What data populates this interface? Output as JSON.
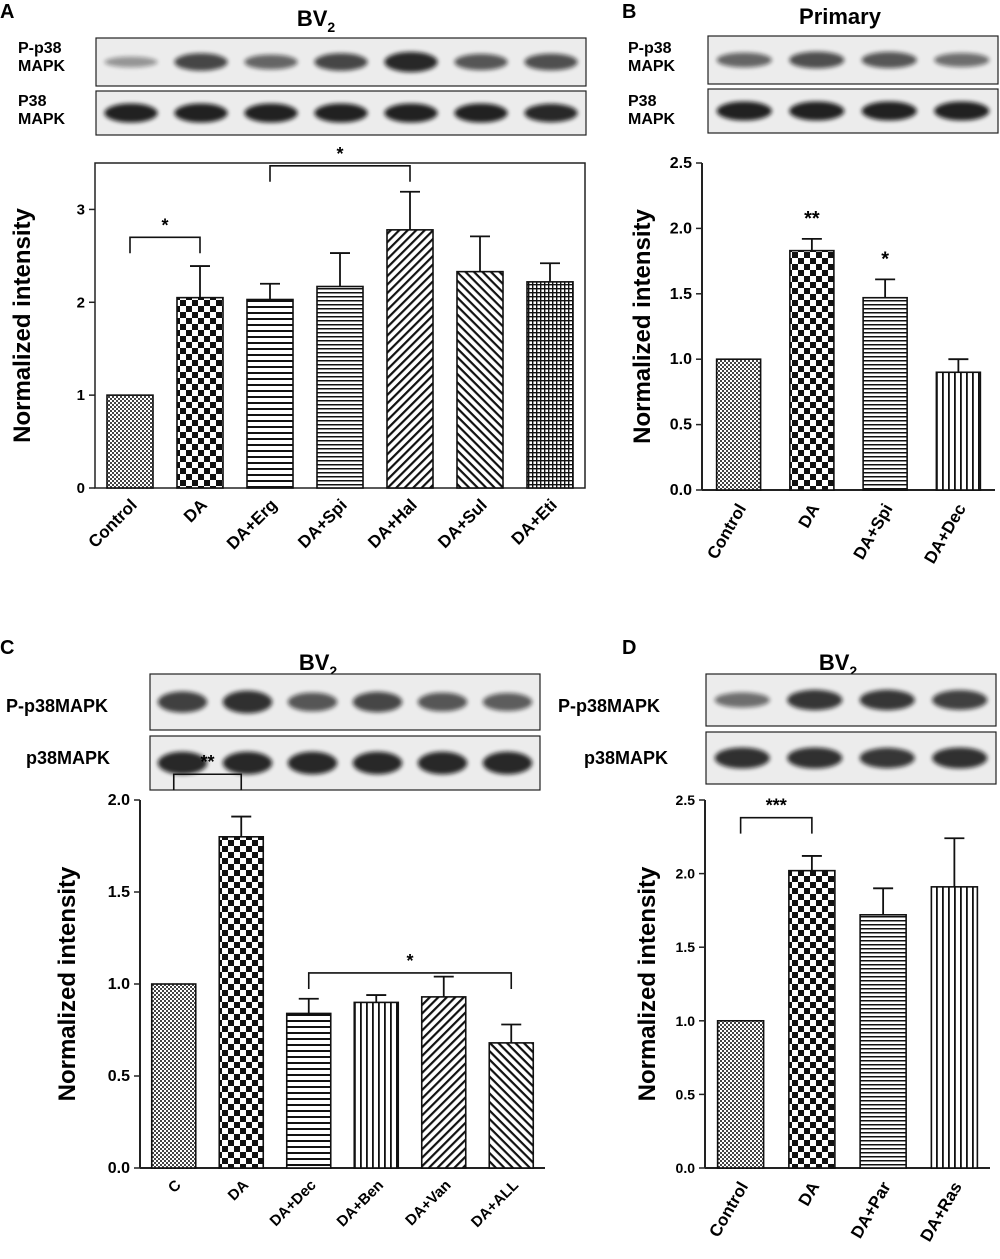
{
  "chart_data": [
    {
      "panel": "A",
      "type": "bar",
      "title": "BV",
      "title_sub": "2",
      "blot_labels": [
        [
          "P-p38",
          "MAPK"
        ],
        [
          "P38",
          "MAPK"
        ]
      ],
      "ylabel": "Normalized intensity",
      "xlabel": "",
      "ylim": [
        0,
        3.5
      ],
      "yticks": [
        0,
        1,
        2,
        3
      ],
      "ytick_labels": [
        "0",
        "1",
        "2",
        "3"
      ],
      "categories": [
        "Control",
        "DA",
        "DA+Erg",
        "DA+Spi",
        "DA+Hal",
        "DA+Sul",
        "DA+Eti"
      ],
      "values": [
        1.0,
        2.05,
        2.03,
        2.17,
        2.78,
        2.33,
        2.22
      ],
      "errors": [
        0.0,
        0.34,
        0.17,
        0.36,
        0.41,
        0.38,
        0.2
      ],
      "patterns": [
        "dots",
        "checker-large",
        "hlines",
        "hlines-fine",
        "diag-right",
        "diag-left",
        "grid-fine"
      ],
      "annotations": [
        {
          "type": "bracket",
          "from": 0,
          "to": 1,
          "y": 2.7,
          "label": "*"
        },
        {
          "type": "bracket",
          "from": 2,
          "to": 4,
          "y": 3.47,
          "label": "*"
        }
      ]
    },
    {
      "panel": "B",
      "type": "bar",
      "title": "Primary",
      "title_sub": "",
      "blot_labels": [
        [
          "P-p38",
          "MAPK"
        ],
        [
          "P38",
          "MAPK"
        ]
      ],
      "ylabel": "Normalized intensity",
      "xlabel": "",
      "ylim": [
        0,
        2.5
      ],
      "yticks": [
        0,
        0.5,
        1,
        1.5,
        2,
        2.5
      ],
      "ytick_labels": [
        "0.0",
        "0.5",
        "1.0",
        "1.5",
        "2.0",
        "2.5"
      ],
      "categories": [
        "Control",
        "DA",
        "DA+Spi",
        "DA+Dec"
      ],
      "values": [
        1.0,
        1.83,
        1.47,
        0.9
      ],
      "errors": [
        0.0,
        0.09,
        0.14,
        0.1
      ],
      "patterns": [
        "dots",
        "checker-large",
        "hlines-fine",
        "vlines"
      ],
      "annotations": [
        {
          "type": "star",
          "bar": 1,
          "label": "**"
        },
        {
          "type": "star",
          "bar": 2,
          "label": "*"
        }
      ]
    },
    {
      "panel": "C",
      "type": "bar",
      "title": "BV",
      "title_sub": "2",
      "blot_labels": [
        [
          "P-p38MAPK"
        ],
        [
          "p38MAPK"
        ]
      ],
      "ylabel": "Normalized intensity",
      "xlabel": "",
      "ylim": [
        0,
        2.0
      ],
      "yticks": [
        0,
        0.5,
        1,
        1.5,
        2
      ],
      "ytick_labels": [
        "0.0",
        "0.5",
        "1.0",
        "1.5",
        "2.0"
      ],
      "categories": [
        "C",
        "DA",
        "DA+Dec",
        "DA+Ben",
        "DA+Van",
        "DA+ALL"
      ],
      "values": [
        1.0,
        1.8,
        0.84,
        0.9,
        0.93,
        0.68
      ],
      "errors": [
        0.0,
        0.11,
        0.08,
        0.04,
        0.11,
        0.1
      ],
      "patterns": [
        "dots",
        "checker-large",
        "hlines",
        "vlines",
        "diag-right",
        "diag-left"
      ],
      "annotations": [
        {
          "type": "bracket",
          "from": 0,
          "to": 1,
          "y": 2.14,
          "label": "**"
        },
        {
          "type": "bracket",
          "from": 2,
          "to": 5,
          "y": 1.06,
          "label": "*"
        }
      ]
    },
    {
      "panel": "D",
      "type": "bar",
      "title": "BV",
      "title_sub": "2",
      "blot_labels": [
        [
          "P-p38MAPK"
        ],
        [
          "p38MAPK"
        ]
      ],
      "ylabel": "Normalized intensity",
      "xlabel": "",
      "ylim": [
        0,
        2.5
      ],
      "yticks": [
        0,
        0.5,
        1,
        1.5,
        2,
        2.5
      ],
      "ytick_labels": [
        "0.0",
        "0.5",
        "1.0",
        "1.5",
        "2.0",
        "2.5"
      ],
      "categories": [
        "Control",
        "DA",
        "DA+Par",
        "DA+Ras"
      ],
      "values": [
        1.0,
        2.02,
        1.72,
        1.91
      ],
      "errors": [
        0.0,
        0.1,
        0.18,
        0.33
      ],
      "patterns": [
        "dots",
        "checker-large",
        "hlines-fine",
        "vlines"
      ],
      "annotations": [
        {
          "type": "bracket",
          "from": 0,
          "to": 1,
          "y": 2.38,
          "label": "***"
        }
      ]
    }
  ]
}
